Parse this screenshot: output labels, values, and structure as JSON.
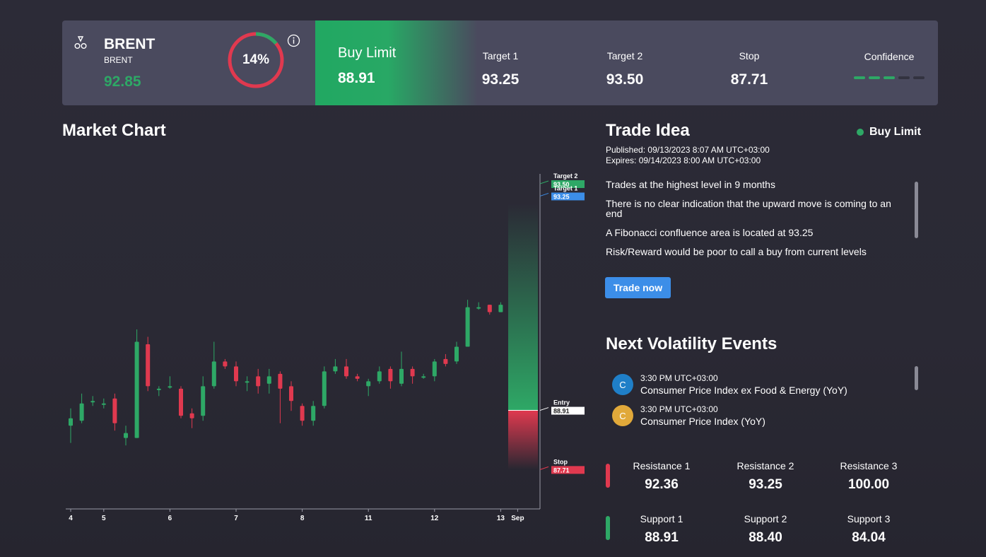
{
  "instrument": {
    "name": "BRENT",
    "subtitle": "BRENT",
    "price": "92.85",
    "progress_text": "14%",
    "progress_fraction": 0.14
  },
  "signal": {
    "type": "Buy Limit",
    "entry": "88.91",
    "target1_label": "Target 1",
    "target1": "93.25",
    "target2_label": "Target 2",
    "target2": "93.50",
    "stop_label": "Stop",
    "stop": "87.71",
    "confidence_label": "Confidence",
    "confidence_level": 3,
    "confidence_max": 5
  },
  "colors": {
    "bull": "#2ea866",
    "bear": "#e0394f",
    "accent_blue": "#3c8ee8",
    "card": "#4a4a5e"
  },
  "chart_section": {
    "title": "Market Chart"
  },
  "chart_data": {
    "type": "candlestick",
    "x_tick_labels": [
      "4",
      "5",
      "6",
      "7",
      "8",
      "11",
      "12",
      "13",
      "Sep"
    ],
    "ylim": [
      87.3,
      93.6
    ],
    "candles": [
      {
        "o": 88.6,
        "c": 88.75,
        "h": 88.95,
        "l": 88.25
      },
      {
        "o": 88.7,
        "c": 89.05,
        "h": 89.25,
        "l": 88.65
      },
      {
        "o": 89.1,
        "c": 89.1,
        "h": 89.2,
        "l": 89.0
      },
      {
        "o": 89.05,
        "c": 89.05,
        "h": 89.15,
        "l": 88.95
      },
      {
        "o": 89.15,
        "c": 88.65,
        "h": 89.25,
        "l": 88.5
      },
      {
        "o": 88.35,
        "c": 88.45,
        "h": 88.6,
        "l": 88.2
      },
      {
        "o": 88.35,
        "c": 90.3,
        "h": 90.55,
        "l": 88.35
      },
      {
        "o": 90.25,
        "c": 89.4,
        "h": 90.4,
        "l": 89.3
      },
      {
        "o": 89.35,
        "c": 89.35,
        "h": 89.4,
        "l": 89.2
      },
      {
        "o": 89.4,
        "c": 89.4,
        "h": 89.6,
        "l": 89.35
      },
      {
        "o": 89.35,
        "c": 88.8,
        "h": 89.4,
        "l": 88.75
      },
      {
        "o": 88.85,
        "c": 88.75,
        "h": 88.95,
        "l": 88.55
      },
      {
        "o": 88.8,
        "c": 89.4,
        "h": 89.6,
        "l": 88.7
      },
      {
        "o": 89.4,
        "c": 89.9,
        "h": 90.3,
        "l": 89.35
      },
      {
        "o": 89.9,
        "c": 89.8,
        "h": 89.95,
        "l": 89.75
      },
      {
        "o": 89.8,
        "c": 89.5,
        "h": 89.9,
        "l": 89.4
      },
      {
        "o": 89.5,
        "c": 89.5,
        "h": 89.6,
        "l": 89.3
      },
      {
        "o": 89.6,
        "c": 89.4,
        "h": 89.75,
        "l": 89.25
      },
      {
        "o": 89.45,
        "c": 89.6,
        "h": 89.75,
        "l": 89.25
      },
      {
        "o": 89.65,
        "c": 89.35,
        "h": 89.7,
        "l": 88.65
      },
      {
        "o": 89.4,
        "c": 89.1,
        "h": 89.5,
        "l": 88.9
      },
      {
        "o": 89.0,
        "c": 88.7,
        "h": 89.05,
        "l": 88.6
      },
      {
        "o": 88.7,
        "c": 89.0,
        "h": 89.1,
        "l": 88.6
      },
      {
        "o": 89.0,
        "c": 89.7,
        "h": 89.8,
        "l": 88.95
      },
      {
        "o": 89.7,
        "c": 89.8,
        "h": 89.95,
        "l": 89.65
      },
      {
        "o": 89.8,
        "c": 89.6,
        "h": 89.95,
        "l": 89.55
      },
      {
        "o": 89.6,
        "c": 89.55,
        "h": 89.65,
        "l": 89.5
      },
      {
        "o": 89.4,
        "c": 89.5,
        "h": 89.55,
        "l": 89.2
      },
      {
        "o": 89.5,
        "c": 89.7,
        "h": 89.8,
        "l": 89.45
      },
      {
        "o": 89.75,
        "c": 89.5,
        "h": 89.8,
        "l": 89.35
      },
      {
        "o": 89.45,
        "c": 89.75,
        "h": 90.1,
        "l": 89.4
      },
      {
        "o": 89.75,
        "c": 89.6,
        "h": 89.8,
        "l": 89.45
      },
      {
        "o": 89.6,
        "c": 89.6,
        "h": 89.65,
        "l": 89.55
      },
      {
        "o": 89.6,
        "c": 89.9,
        "h": 89.95,
        "l": 89.5
      },
      {
        "o": 89.95,
        "c": 89.85,
        "h": 90.05,
        "l": 89.8
      },
      {
        "o": 89.9,
        "c": 90.2,
        "h": 90.3,
        "l": 89.85
      },
      {
        "o": 90.2,
        "c": 91.0,
        "h": 91.15,
        "l": 90.2
      },
      {
        "o": 91.0,
        "c": 91.0,
        "h": 91.1,
        "l": 90.95
      },
      {
        "o": 91.05,
        "c": 90.9,
        "h": 91.05,
        "l": 90.85
      },
      {
        "o": 90.9,
        "c": 91.05,
        "h": 91.1,
        "l": 90.9
      }
    ],
    "levels": [
      {
        "name": "Target 2",
        "value": 93.5,
        "label": "93.50",
        "color": "#2ea866"
      },
      {
        "name": "Target 1",
        "value": 93.25,
        "label": "93.25",
        "color": "#3c8ee8"
      },
      {
        "name": "Entry",
        "value": 88.91,
        "label": "88.91",
        "color": "#ffffff"
      },
      {
        "name": "Stop",
        "value": 87.71,
        "label": "87.71",
        "color": "#e0394f"
      }
    ]
  },
  "trade_idea": {
    "title": "Trade Idea",
    "badge": "Buy Limit",
    "published_label": "Published:",
    "published": "09/13/2023 8:07 AM UTC+03:00",
    "expires_label": "Expires:",
    "expires": "09/14/2023 8:00 AM UTC+03:00",
    "points": [
      "Trades at the highest level in 9 months",
      "There is no clear indication that the upward move is coming to an end",
      "A Fibonacci confluence area is located at 93.25",
      "Risk/Reward would be poor to call a buy from current levels"
    ],
    "cta": "Trade now"
  },
  "volatility": {
    "title": "Next Volatility Events",
    "events": [
      {
        "badge": "C",
        "badge_color": "#1f7fc8",
        "time": "3:30 PM UTC+03:00",
        "name": "Consumer Price Index ex Food & Energy (YoY)"
      },
      {
        "badge": "C",
        "badge_color": "#e1a93a",
        "time": "3:30 PM UTC+03:00",
        "name": "Consumer Price Index (YoY)"
      }
    ]
  },
  "levels_table": {
    "resistance": [
      {
        "label": "Resistance 1",
        "value": "92.36"
      },
      {
        "label": "Resistance 2",
        "value": "93.25"
      },
      {
        "label": "Resistance 3",
        "value": "100.00"
      }
    ],
    "support": [
      {
        "label": "Support 1",
        "value": "88.91"
      },
      {
        "label": "Support 2",
        "value": "88.40"
      },
      {
        "label": "Support 3",
        "value": "84.04"
      }
    ]
  }
}
